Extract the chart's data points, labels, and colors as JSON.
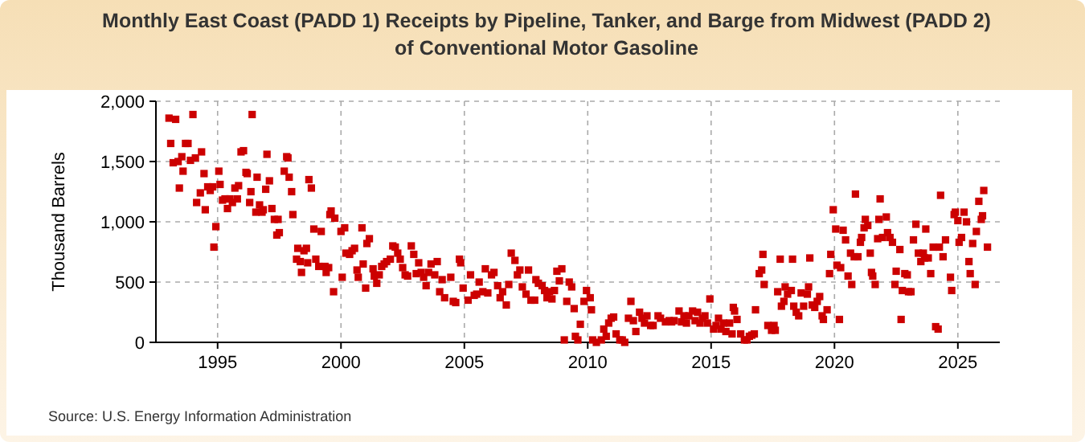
{
  "chart_data": {
    "type": "scatter",
    "title": "Monthly East Coast (PADD 1) Receipts by Pipeline, Tanker, and Barge from Midwest (PADD 2) of Conventional Motor Gasoline",
    "ylabel": "Thousand Barrels",
    "annotations": [
      "Source: U.S. Energy Information Administration"
    ],
    "marker": "square",
    "grid": true,
    "xlim": [
      1992.5,
      2026.7
    ],
    "xticks": [
      1995,
      2000,
      2005,
      2010,
      2015,
      2020,
      2025
    ],
    "ylim": [
      0,
      2000
    ],
    "yticks": [
      0,
      500,
      {
        "value": 1000,
        "label": "1,000"
      },
      {
        "value": 1500,
        "label": "1,500"
      },
      {
        "value": 2000,
        "label": "2,000"
      }
    ],
    "series": [
      {
        "color": "#cc0000",
        "x": [
          1993.03,
          1993.1,
          1993.2,
          1993.3,
          1993.4,
          1993.45,
          1993.55,
          1993.6,
          1993.7,
          1993.8,
          1993.9,
          1994.0,
          1994.1,
          1994.15,
          1994.3,
          1994.35,
          1994.45,
          1994.5,
          1994.6,
          1994.7,
          1994.8,
          1994.85,
          1994.93,
          1995.05,
          1995.1,
          1995.2,
          1995.3,
          1995.4,
          1995.5,
          1995.6,
          1995.7,
          1995.8,
          1995.85,
          1995.95,
          1996.05,
          1996.15,
          1996.2,
          1996.3,
          1996.35,
          1996.4,
          1996.55,
          1996.6,
          1996.7,
          1996.8,
          1996.85,
          1996.95,
          1997.0,
          1997.1,
          1997.2,
          1997.3,
          1997.4,
          1997.45,
          1997.5,
          1997.7,
          1997.8,
          1997.85,
          1997.9,
          1998.0,
          1998.05,
          1998.2,
          1998.25,
          1998.35,
          1998.4,
          1998.5,
          1998.6,
          1998.65,
          1998.7,
          1998.8,
          1998.9,
          1998.98,
          1999.1,
          1999.2,
          1999.35,
          1999.4,
          1999.5,
          1999.55,
          1999.6,
          1999.7,
          1999.75,
          2000.0,
          2000.05,
          2000.15,
          2000.2,
          2000.35,
          2000.45,
          2000.55,
          2000.65,
          2000.7,
          2000.85,
          2000.9,
          2001.0,
          2001.05,
          2001.15,
          2001.3,
          2001.35,
          2001.45,
          2001.55,
          2001.65,
          2001.75,
          2001.85,
          2002.0,
          2002.1,
          2002.2,
          2002.3,
          2002.4,
          2002.5,
          2002.6,
          2002.7,
          2002.85,
          2002.95,
          2003.05,
          2003.15,
          2003.25,
          2003.35,
          2003.45,
          2003.55,
          2003.65,
          2003.8,
          2003.9,
          2004.0,
          2004.1,
          2004.2,
          2004.45,
          2004.55,
          2004.65,
          2004.8,
          2004.85,
          2004.95,
          2005.15,
          2005.25,
          2005.4,
          2005.5,
          2005.6,
          2005.75,
          2005.85,
          2005.95,
          2006.1,
          2006.2,
          2006.35,
          2006.45,
          2006.55,
          2006.7,
          2006.8,
          2006.9,
          2007.05,
          2007.15,
          2007.25,
          2007.35,
          2007.5,
          2007.6,
          2007.7,
          2007.85,
          2007.9,
          2008.0,
          2008.15,
          2008.25,
          2008.35,
          2008.45,
          2008.55,
          2008.65,
          2008.75,
          2008.85,
          2008.95,
          2009.05,
          2009.15,
          2009.25,
          2009.35,
          2009.45,
          2009.5,
          2009.6,
          2009.7,
          2009.85,
          2009.95,
          2010.1,
          2010.15,
          2010.2,
          2010.35,
          2010.55,
          2010.65,
          2010.75,
          2010.85,
          2010.95,
          2011.05,
          2011.15,
          2011.3,
          2011.4,
          2011.5,
          2011.65,
          2011.75,
          2011.85,
          2011.95,
          2012.1,
          2012.2,
          2012.3,
          2012.4,
          2012.55,
          2012.65,
          2012.85,
          2012.95,
          2013.15,
          2013.3,
          2013.4,
          2013.5,
          2013.7,
          2013.8,
          2013.9,
          2014.0,
          2014.1,
          2014.25,
          2014.35,
          2014.45,
          2014.55,
          2014.65,
          2014.75,
          2014.85,
          2014.95,
          2015.1,
          2015.2,
          2015.3,
          2015.4,
          2015.5,
          2015.6,
          2015.75,
          2015.85,
          2015.9,
          2015.95,
          2016.05,
          2016.2,
          2016.35,
          2016.45,
          2016.55,
          2016.65,
          2016.75,
          2016.8,
          2016.95,
          2017.05,
          2017.1,
          2017.15,
          2017.3,
          2017.45,
          2017.55,
          2017.6,
          2017.7,
          2017.8,
          2017.85,
          2017.95,
          2018.0,
          2018.1,
          2018.25,
          2018.3,
          2018.35,
          2018.45,
          2018.55,
          2018.65,
          2018.75,
          2018.9,
          2018.95,
          2019.0,
          2019.1,
          2019.2,
          2019.3,
          2019.4,
          2019.5,
          2019.55,
          2019.7,
          2019.8,
          2019.85,
          2019.95,
          2020.05,
          2020.1,
          2020.2,
          2020.25,
          2020.35,
          2020.45,
          2020.55,
          2020.65,
          2020.7,
          2020.8,
          2020.85,
          2020.95,
          2021.05,
          2021.1,
          2021.2,
          2021.25,
          2021.35,
          2021.45,
          2021.5,
          2021.55,
          2021.65,
          2021.75,
          2021.8,
          2021.85,
          2021.95,
          2022.1,
          2022.15,
          2022.25,
          2022.35,
          2022.45,
          2022.5,
          2022.65,
          2022.7,
          2022.75,
          2022.85,
          2022.95,
          2023.0,
          2023.1,
          2023.2,
          2023.3,
          2023.4,
          2023.5,
          2023.6,
          2023.65,
          2023.7,
          2023.8,
          2023.9,
          2024.0,
          2024.1,
          2024.2,
          2024.25,
          2024.3,
          2024.4,
          2024.5,
          2024.7,
          2024.75,
          2024.85,
          2024.9,
          2025.0,
          2025.05,
          2025.15,
          2025.25,
          2025.35,
          2025.45,
          2025.5,
          2025.6,
          2025.7,
          2025.75,
          2025.85,
          2025.95,
          2026.0,
          2026.05,
          2026.2
        ],
        "values": [
          1860,
          1650,
          1490,
          1850,
          1500,
          1280,
          1540,
          1420,
          1650,
          1650,
          1510,
          1890,
          1530,
          1160,
          1240,
          1580,
          1400,
          1100,
          1290,
          1260,
          1290,
          790,
          960,
          1420,
          1310,
          1180,
          1190,
          1110,
          1190,
          1160,
          1280,
          1190,
          1300,
          1580,
          1590,
          1410,
          1400,
          1160,
          1250,
          1890,
          1080,
          1370,
          1140,
          1080,
          1100,
          1270,
          1560,
          1340,
          1110,
          1020,
          890,
          1020,
          910,
          1420,
          1540,
          1530,
          1370,
          1250,
          1060,
          690,
          780,
          670,
          580,
          760,
          780,
          660,
          1350,
          1280,
          940,
          690,
          630,
          920,
          630,
          580,
          620,
          1060,
          1090,
          420,
          1030,
          920,
          540,
          950,
          740,
          730,
          760,
          780,
          600,
          540,
          950,
          650,
          450,
          820,
          860,
          610,
          550,
          490,
          560,
          630,
          650,
          670,
          690,
          800,
          790,
          740,
          690,
          620,
          560,
          550,
          800,
          730,
          570,
          660,
          580,
          540,
          470,
          580,
          650,
          560,
          670,
          420,
          520,
          370,
          540,
          340,
          330,
          690,
          660,
          450,
          350,
          560,
          390,
          400,
          500,
          420,
          610,
          410,
          560,
          580,
          470,
          370,
          420,
          310,
          480,
          740,
          680,
          560,
          600,
          460,
          400,
          600,
          350,
          350,
          520,
          490,
          470,
          430,
          370,
          420,
          360,
          430,
          590,
          510,
          610,
          20,
          340,
          500,
          460,
          280,
          50,
          20,
          150,
          340,
          430,
          370,
          270,
          20,
          0,
          20,
          110,
          50,
          160,
          200,
          210,
          70,
          20,
          20,
          0,
          200,
          340,
          180,
          90,
          250,
          200,
          160,
          220,
          140,
          140,
          220,
          200,
          170,
          180,
          170,
          180,
          260,
          170,
          220,
          160,
          220,
          260,
          180,
          250,
          160,
          200,
          220,
          160,
          360,
          110,
          140,
          200,
          110,
          160,
          90,
          160,
          70,
          290,
          260,
          190,
          70,
          20,
          20,
          50,
          60,
          70,
          270,
          570,
          600,
          730,
          480,
          140,
          100,
          140,
          100,
          420,
          690,
          300,
          340,
          460,
          400,
          430,
          690,
          300,
          250,
          220,
          410,
          300,
          400,
          460,
          700,
          310,
          290,
          340,
          380,
          220,
          190,
          270,
          570,
          730,
          1100,
          940,
          640,
          190,
          620,
          930,
          850,
          550,
          740,
          480,
          710,
          1230,
          710,
          830,
          870,
          950,
          1020,
          970,
          740,
          580,
          550,
          480,
          860,
          1020,
          1190,
          870,
          1040,
          910,
          870,
          830,
          480,
          590,
          770,
          190,
          430,
          570,
          560,
          420,
          420,
          850,
          980,
          740,
          670,
          740,
          700,
          940,
          700,
          570,
          790,
          130,
          110,
          790,
          1220,
          710,
          850,
          540,
          430,
          1060,
          1080,
          1010,
          830,
          870,
          1080,
          1000,
          670,
          570,
          820,
          480,
          920,
          1170,
          1020,
          1050,
          1260,
          790
        ]
      }
    ]
  }
}
